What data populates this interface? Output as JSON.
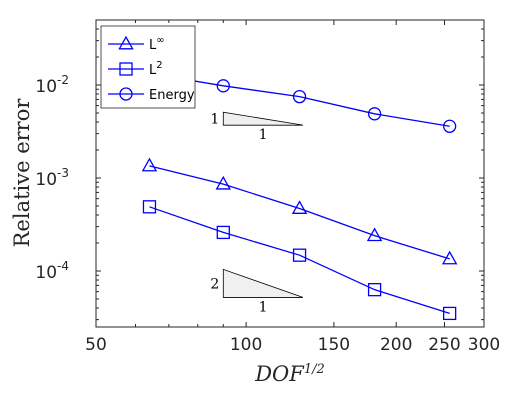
{
  "colors": {
    "series": "#0000FF",
    "axis": "#262626",
    "triangle_fill": "#f0f0f0",
    "triangle_stroke": "#000000"
  },
  "chart_data": {
    "type": "line",
    "scale": {
      "x": "log",
      "y": "log"
    },
    "xlabel": "DOF^{1/2}",
    "ylabel": "Relative error",
    "xlim": [
      50,
      300
    ],
    "ylim": [
      2.5e-05,
      0.05
    ],
    "grid": false,
    "legend_position": "top-left",
    "x_ticks": [
      {
        "value": 50,
        "label": "50"
      },
      {
        "value": 100,
        "label": "100"
      },
      {
        "value": 150,
        "label": "150"
      },
      {
        "value": 200,
        "label": "200"
      },
      {
        "value": 250,
        "label": "250"
      },
      {
        "value": 300,
        "label": "300"
      }
    ],
    "y_ticks": [
      {
        "value": 0.0001,
        "mantissa": "10",
        "exponent": "-4"
      },
      {
        "value": 0.001,
        "mantissa": "10",
        "exponent": "-3"
      },
      {
        "value": 0.01,
        "mantissa": "10",
        "exponent": "-2"
      }
    ],
    "series": [
      {
        "name": "L",
        "name_sup": "∞",
        "marker": "triangle",
        "x": [
          64,
          90,
          128,
          181,
          256
        ],
        "y": [
          0.00135,
          0.00086,
          0.00047,
          0.00024,
          0.000135
        ]
      },
      {
        "name": "L",
        "name_sup": "2",
        "marker": "square",
        "x": [
          64,
          90,
          128,
          181,
          256
        ],
        "y": [
          0.00049,
          0.00026,
          0.000148,
          6.3e-05,
          3.5e-05
        ]
      },
      {
        "name": "Energy",
        "name_sup": "",
        "marker": "circle",
        "x": [
          64,
          90,
          128,
          181,
          256
        ],
        "y": [
          0.0133,
          0.0098,
          0.0075,
          0.0049,
          0.0036
        ]
      }
    ],
    "slope_triangles": [
      {
        "vertical_label": "1",
        "horizontal_label": "1",
        "x_range": [
          90,
          130
        ],
        "y_range": [
          0.0037,
          0.0051
        ]
      },
      {
        "vertical_label": "2",
        "horizontal_label": "1",
        "x_range": [
          90,
          130
        ],
        "y_range": [
          5.2e-05,
          0.000104
        ]
      }
    ]
  }
}
